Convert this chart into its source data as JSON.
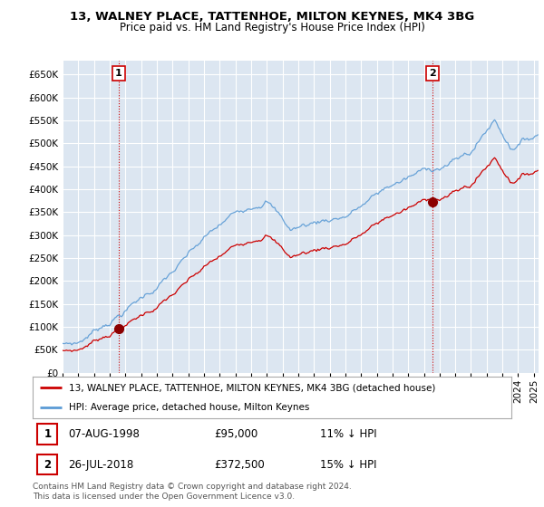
{
  "title": "13, WALNEY PLACE, TATTENHOE, MILTON KEYNES, MK4 3BG",
  "subtitle": "Price paid vs. HM Land Registry's House Price Index (HPI)",
  "ylim": [
    0,
    680000
  ],
  "yticks": [
    0,
    50000,
    100000,
    150000,
    200000,
    250000,
    300000,
    350000,
    400000,
    450000,
    500000,
    550000,
    600000,
    650000
  ],
  "xlim_start": 1995.0,
  "xlim_end": 2025.3,
  "background_color": "#dce6f1",
  "grid_color": "#ffffff",
  "hpi_color": "#5b9bd5",
  "price_color": "#cc0000",
  "purchase1_date": 1998.58,
  "purchase1_price": 95000,
  "purchase1_label": "1",
  "purchase2_date": 2018.54,
  "purchase2_price": 372500,
  "purchase2_label": "2",
  "legend_line1": "13, WALNEY PLACE, TATTENHOE, MILTON KEYNES, MK4 3BG (detached house)",
  "legend_line2": "HPI: Average price, detached house, Milton Keynes",
  "footer": "Contains HM Land Registry data © Crown copyright and database right 2024.\nThis data is licensed under the Open Government Licence v3.0.",
  "marker_color": "#8b0000",
  "marker_size": 7
}
